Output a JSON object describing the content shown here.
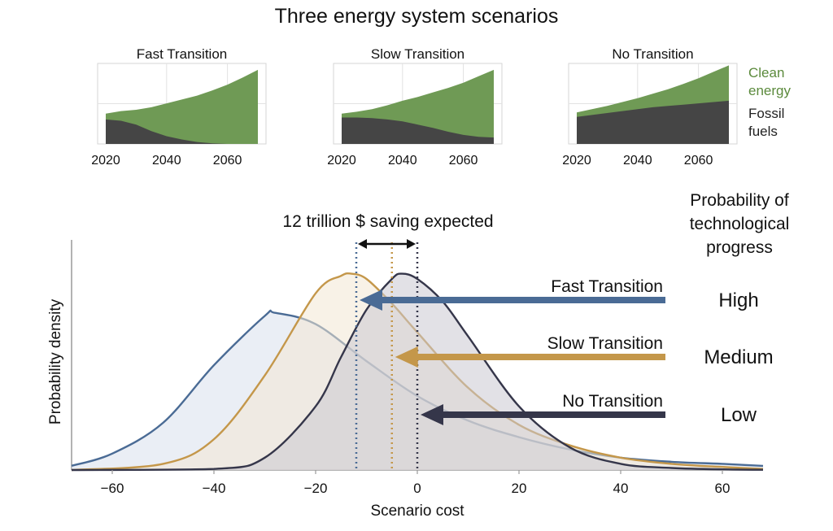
{
  "title": "Three energy system scenarios",
  "mini_charts": {
    "x_ticks": [
      "2020",
      "2040",
      "2060"
    ],
    "legend": {
      "clean_line1": "Clean",
      "clean_line2": "energy",
      "fossil_line1": "Fossil",
      "fossil_line2": "fuels",
      "clean_color": "#6f9a55",
      "fossil_color": "#454545"
    }
  },
  "main_chart": {
    "annotation": "12 trillion $ saving expected",
    "ylabel": "Probability density",
    "xlabel": "Scenario cost",
    "prob_header_line1": "Probability of",
    "prob_header_line2": "technological",
    "prob_header_line3": "progress"
  },
  "chart_data": [
    {
      "type": "area",
      "title": "Fast Transition",
      "x": [
        2020,
        2025,
        2030,
        2035,
        2040,
        2045,
        2050,
        2055,
        2060,
        2065,
        2070
      ],
      "series": [
        {
          "name": "Fossil fuels",
          "values": [
            0.38,
            0.36,
            0.3,
            0.2,
            0.12,
            0.07,
            0.03,
            0.01,
            0.0,
            0.0,
            0.0
          ]
        },
        {
          "name": "Clean energy",
          "values": [
            0.09,
            0.15,
            0.23,
            0.37,
            0.51,
            0.62,
            0.72,
            0.82,
            0.92,
            1.03,
            1.15
          ]
        }
      ],
      "xlim": [
        2020,
        2070
      ],
      "xticks": [
        2020,
        2040,
        2060
      ]
    },
    {
      "type": "area",
      "title": "Slow Transition",
      "x": [
        2020,
        2025,
        2030,
        2035,
        2040,
        2045,
        2050,
        2055,
        2060,
        2065,
        2070
      ],
      "series": [
        {
          "name": "Fossil fuels",
          "values": [
            0.41,
            0.41,
            0.4,
            0.38,
            0.35,
            0.3,
            0.25,
            0.19,
            0.14,
            0.11,
            0.1
          ]
        },
        {
          "name": "Clean energy",
          "values": [
            0.06,
            0.09,
            0.14,
            0.22,
            0.32,
            0.43,
            0.55,
            0.68,
            0.81,
            0.94,
            1.05
          ]
        }
      ],
      "xlim": [
        2020,
        2070
      ],
      "xticks": [
        2020,
        2040,
        2060
      ]
    },
    {
      "type": "area",
      "title": "No Transition",
      "x": [
        2020,
        2025,
        2030,
        2035,
        2040,
        2045,
        2050,
        2055,
        2060,
        2065,
        2070
      ],
      "series": [
        {
          "name": "Fossil fuels",
          "values": [
            0.42,
            0.45,
            0.48,
            0.51,
            0.54,
            0.57,
            0.59,
            0.61,
            0.63,
            0.65,
            0.67
          ]
        },
        {
          "name": "Clean energy",
          "values": [
            0.07,
            0.09,
            0.11,
            0.14,
            0.17,
            0.21,
            0.26,
            0.32,
            0.39,
            0.47,
            0.55
          ]
        }
      ],
      "xlim": [
        2020,
        2070
      ],
      "xticks": [
        2020,
        2040,
        2060
      ]
    },
    {
      "type": "area",
      "title": "",
      "xlabel": "Scenario cost",
      "ylabel": "Probability density",
      "xlim": [
        -68,
        68
      ],
      "ylim": [
        0,
        0.11
      ],
      "xticks": [
        -60,
        -40,
        -20,
        0,
        20,
        40,
        60
      ],
      "grid": false,
      "series": [
        {
          "name": "Fast Transition",
          "color": "#4a6b95",
          "fill": "#d8e0ec",
          "mean": -12,
          "level": "High",
          "x": [
            -68,
            -60,
            -50,
            -40,
            -30,
            -28,
            -20,
            -10,
            0,
            10,
            20,
            30,
            40,
            50,
            60,
            68
          ],
          "values": [
            0.002,
            0.008,
            0.023,
            0.051,
            0.075,
            0.0765,
            0.071,
            0.053,
            0.036,
            0.024,
            0.016,
            0.01,
            0.006,
            0.004,
            0.003,
            0.002
          ]
        },
        {
          "name": "Slow Transition",
          "color": "#c4974a",
          "fill": "#f2e8d3",
          "mean": -5,
          "level": "Medium",
          "x": [
            -68,
            -50,
            -40,
            -30,
            -20,
            -15,
            -13,
            -10,
            -5,
            0,
            10,
            20,
            30,
            40,
            50,
            60,
            68
          ],
          "values": [
            0.0,
            0.003,
            0.015,
            0.046,
            0.086,
            0.0945,
            0.0955,
            0.093,
            0.081,
            0.067,
            0.04,
            0.022,
            0.012,
            0.006,
            0.003,
            0.0015,
            0.0005
          ]
        },
        {
          "name": "No Transition",
          "color": "#35364a",
          "fill": "#cbc8d1",
          "mean": 0,
          "level": "Low",
          "x": [
            -68,
            -40,
            -30,
            -20,
            -15,
            -10,
            -5,
            -3,
            0,
            5,
            10,
            20,
            30,
            40,
            50,
            60,
            68
          ],
          "values": [
            0.0,
            0.0005,
            0.006,
            0.031,
            0.055,
            0.078,
            0.093,
            0.0955,
            0.093,
            0.082,
            0.065,
            0.031,
            0.011,
            0.003,
            0.001,
            0.0003,
            0.0001
          ]
        }
      ]
    }
  ]
}
